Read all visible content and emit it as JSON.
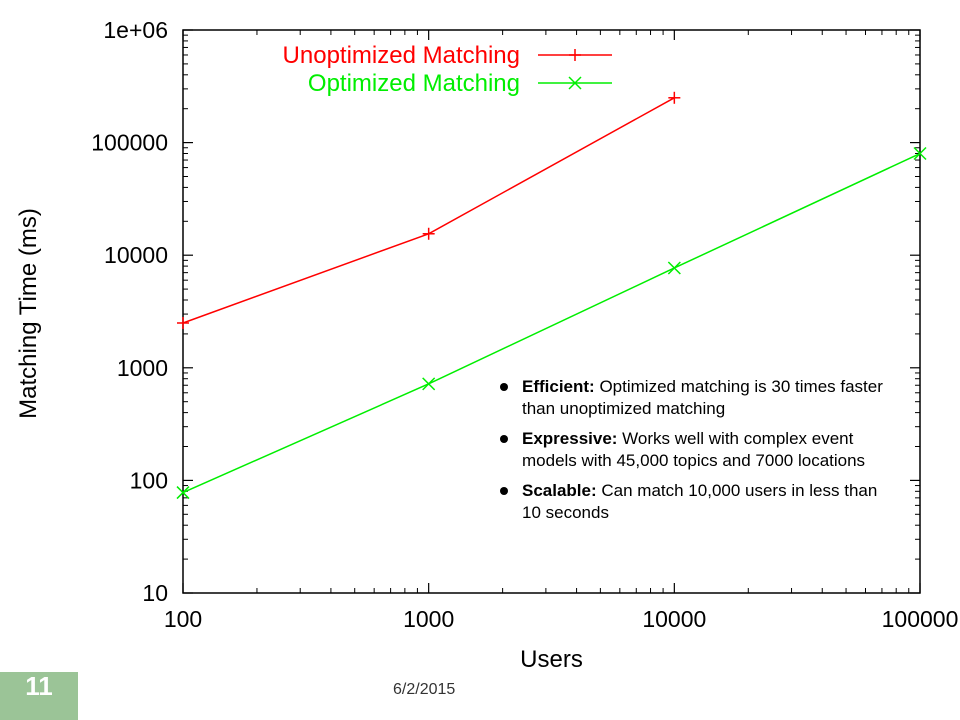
{
  "chart_data": {
    "type": "line",
    "x_scale": "log",
    "y_scale": "log",
    "x_ticks": [
      "100",
      "1000",
      "10000",
      "100000"
    ],
    "y_ticks": [
      "10",
      "100",
      "1000",
      "10000",
      "100000",
      "1e+06"
    ],
    "xlim": [
      100,
      100000
    ],
    "ylim": [
      10,
      1000000
    ],
    "xlabel": "Users",
    "ylabel": "Matching Time (ms)",
    "legend_position": "top-left-inside",
    "grid": false,
    "series": [
      {
        "name": "Unoptimized Matching",
        "color": "#ff0000",
        "marker": "plus",
        "points": [
          [
            100,
            2500
          ],
          [
            1000,
            15500
          ],
          [
            10000,
            250000
          ]
        ]
      },
      {
        "name": "Optimized Matching",
        "color": "#00ee00",
        "marker": "x",
        "points": [
          [
            100,
            78
          ],
          [
            1000,
            720
          ],
          [
            10000,
            7700
          ],
          [
            100000,
            80000
          ]
        ]
      }
    ]
  },
  "notes": [
    {
      "bold": "Efficient:",
      "text": " Optimized matching is 30 times faster than unoptimized matching"
    },
    {
      "bold": "Expressive:",
      "text": " Works well with complex event models with 45,000 topics and 7000 locations"
    },
    {
      "bold": "Scalable:",
      "text": " Can match 10,000 users in less than 10 seconds"
    }
  ],
  "footer": {
    "slide_number": "11",
    "date": "6/2/2015"
  }
}
